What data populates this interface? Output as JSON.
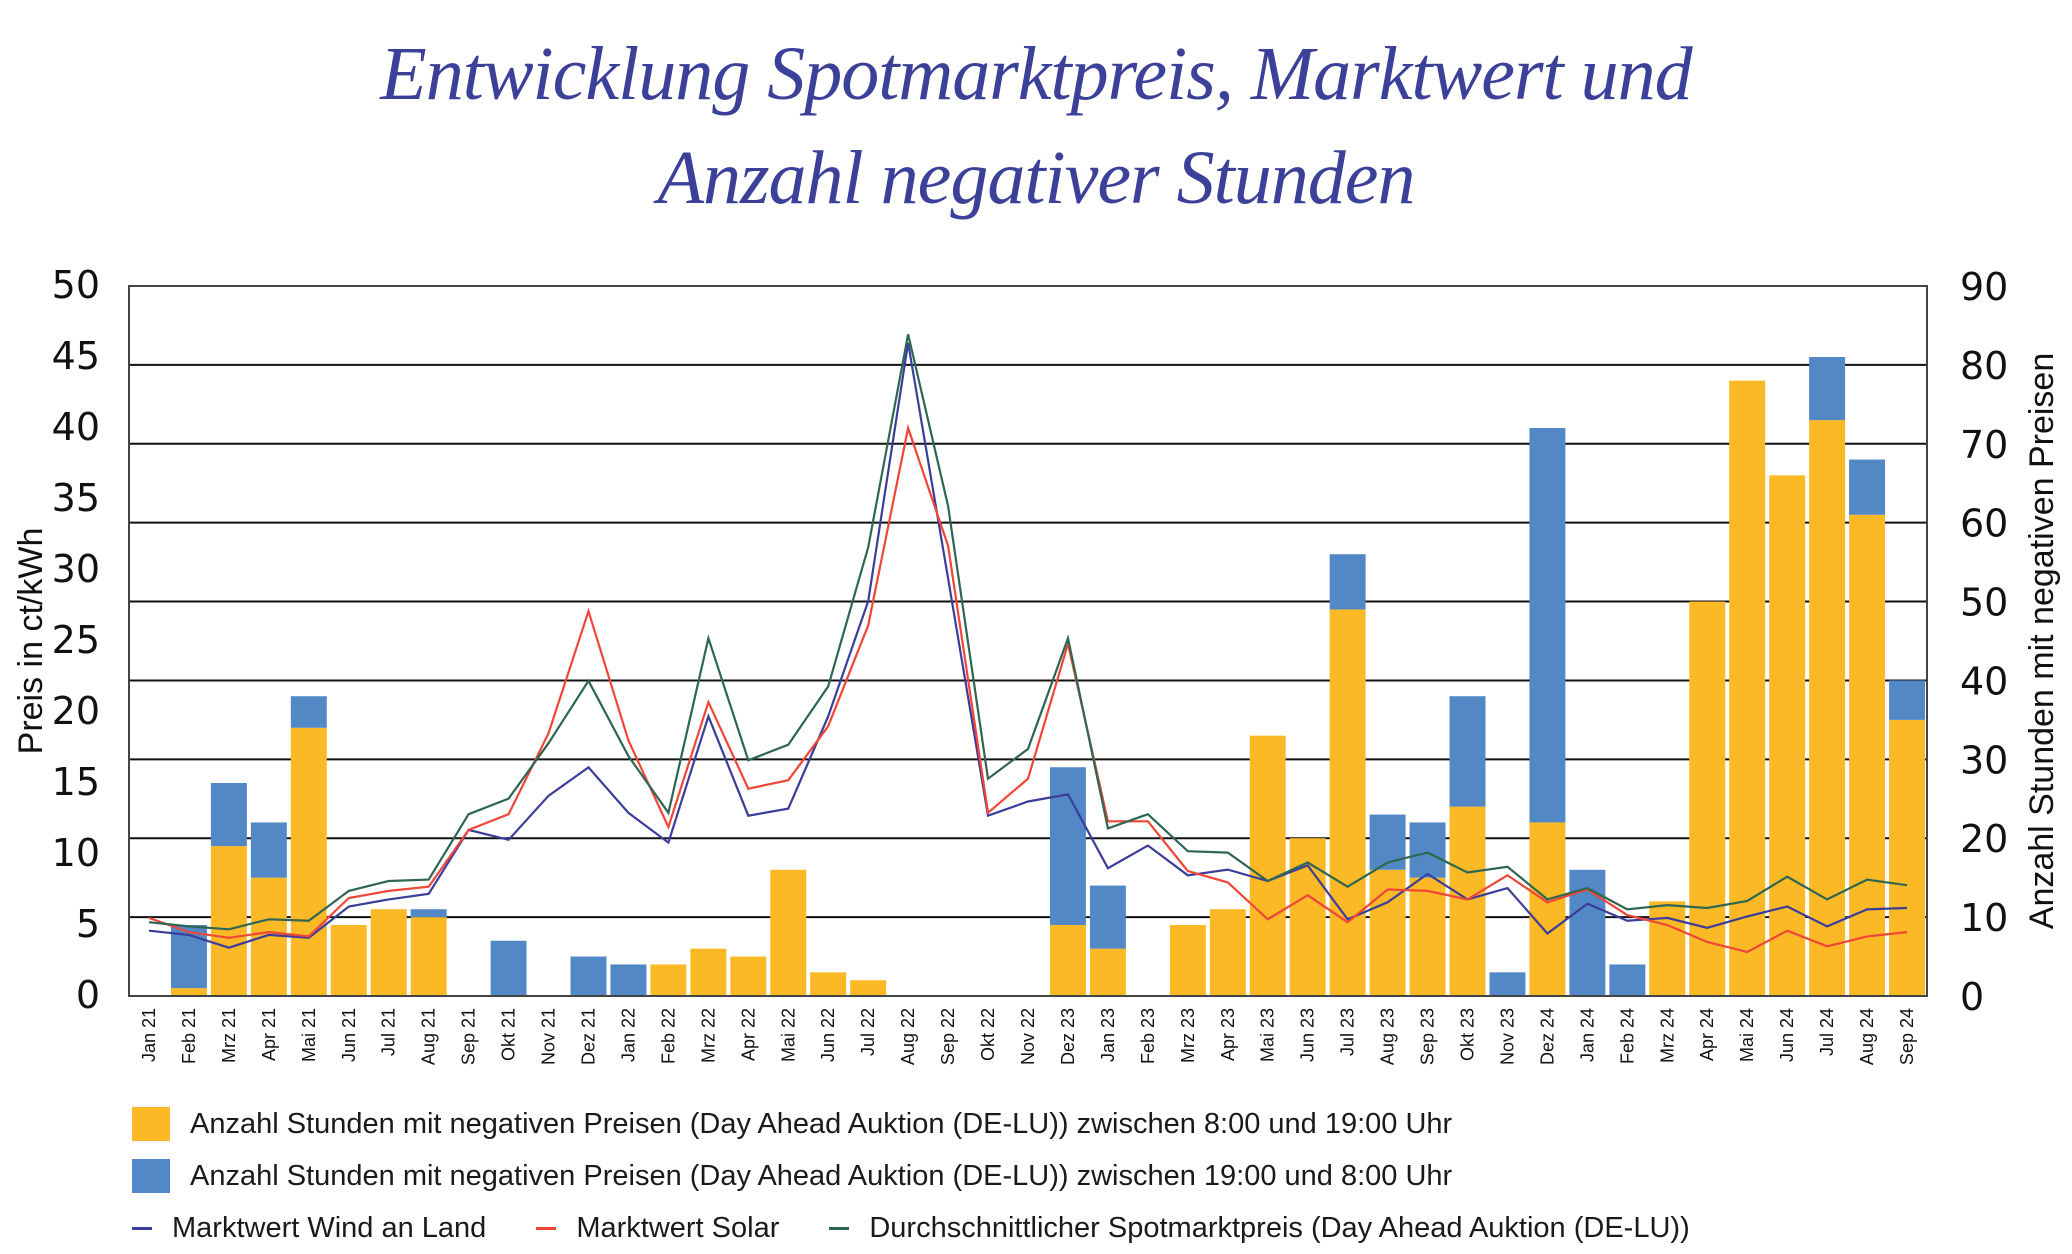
{
  "title_line1": "Entwicklung Spotmarktpreis, Marktwert und",
  "title_line2": "Anzahl negativer Stunden",
  "colors": {
    "title": "#3b4099",
    "day_hours": "#fbb925",
    "night_hours": "#5388c7",
    "wind": "#3b3d9b",
    "solar": "#ef4638",
    "spot": "#2e6652"
  },
  "legend": {
    "day_hours": "Anzahl Stunden mit negativen Preisen (Day Ahead Auktion (DE-LU)) zwischen 8:00 und 19:00 Uhr",
    "night_hours": "Anzahl Stunden mit negativen Preisen (Day Ahead Auktion (DE-LU)) zwischen 19:00 und 8:00 Uhr",
    "wind": "Marktwert Wind an Land",
    "solar": "Marktwert Solar",
    "spot": "Durchschnittlicher Spotmarktpreis (Day Ahead Auktion (DE-LU))"
  },
  "chart_data": {
    "type": "bar+line",
    "title": "Entwicklung Spotmarktpreis, Marktwert und Anzahl negativer Stunden",
    "ylabel_left": "Preis in ct/kWh",
    "ylabel_right": "Anzahl Stunden mit negativen Preisen",
    "ylim_left": [
      0,
      50
    ],
    "yticks_left": [
      0,
      5,
      10,
      15,
      20,
      25,
      30,
      35,
      40,
      45,
      50
    ],
    "ylim_right": [
      0,
      90
    ],
    "yticks_right": [
      0,
      10,
      20,
      30,
      40,
      50,
      60,
      70,
      80,
      90
    ],
    "grid": true,
    "legend_position": "bottom",
    "categories": [
      "Jan 21",
      "Feb 21",
      "Mrz 21",
      "Apr 21",
      "Mai 21",
      "Jun 21",
      "Jul 21",
      "Aug 21",
      "Sep 21",
      "Okt 21",
      "Nov 21",
      "Dez 21",
      "Jan 22",
      "Feb 22",
      "Mrz 22",
      "Apr 22",
      "Mai 22",
      "Jun 22",
      "Jul 22",
      "Aug 22",
      "Sep 22",
      "Okt 22",
      "Nov 22",
      "Dez 23",
      "Jan 23",
      "Feb 23",
      "Mrz 23",
      "Apr 23",
      "Mai 23",
      "Jun 23",
      "Jul 23",
      "Aug 23",
      "Sep 23",
      "Okt 23",
      "Nov 23",
      "Dez 24",
      "Jan 24",
      "Feb 24",
      "Mrz 24",
      "Apr 24",
      "Mai 24",
      "Jun 24",
      "Jul 24",
      "Aug 24",
      "Sep 24"
    ],
    "bar_series": [
      {
        "name": "Anzahl Stunden mit negativen Preisen (Day Ahead Auktion (DE-LU)) zwischen 8:00 und 19:00 Uhr",
        "axis": "right",
        "stack": "hours",
        "values": [
          0,
          1,
          19,
          15,
          34,
          9,
          11,
          10,
          0,
          0,
          0,
          0,
          0,
          4,
          6,
          5,
          16,
          3,
          2,
          0,
          0,
          0,
          0,
          9,
          6,
          0,
          9,
          11,
          33,
          20,
          49,
          16,
          15,
          24,
          0,
          22,
          0,
          0,
          12,
          50,
          78,
          66,
          73,
          61,
          35
        ]
      },
      {
        "name": "Anzahl Stunden mit negativen Preisen (Day Ahead Auktion (DE-LU)) zwischen 19:00 und 8:00 Uhr",
        "axis": "right",
        "stack": "hours",
        "values": [
          0,
          8,
          8,
          7,
          4,
          0,
          0,
          1,
          0,
          7,
          0,
          5,
          4,
          0,
          0,
          0,
          0,
          0,
          0,
          0,
          0,
          0,
          0,
          20,
          8,
          0,
          0,
          0,
          0,
          0,
          7,
          7,
          7,
          14,
          3,
          50,
          16,
          4,
          0,
          0,
          0,
          0,
          8,
          7,
          5
        ]
      }
    ],
    "line_series": [
      {
        "name": "Marktwert Wind an Land",
        "axis": "left",
        "values": [
          4.6,
          4.3,
          3.4,
          4.3,
          4.1,
          6.3,
          6.8,
          7.2,
          11.7,
          11.0,
          14.1,
          16.1,
          12.9,
          10.8,
          19.7,
          12.7,
          13.2,
          19.7,
          27.8,
          46.0,
          29.4,
          12.7,
          13.7,
          14.2,
          9.0,
          10.6,
          8.5,
          8.9,
          8.1,
          9.2,
          5.4,
          6.6,
          8.6,
          6.8,
          7.6,
          4.4,
          6.5,
          5.3,
          5.5,
          4.8,
          5.6,
          6.3,
          4.9,
          6.1,
          6.2
        ]
      },
      {
        "name": "Marktwert Solar",
        "axis": "left",
        "values": [
          5.5,
          4.5,
          4.1,
          4.5,
          4.2,
          6.9,
          7.4,
          7.7,
          11.7,
          12.8,
          18.5,
          27.1,
          18.0,
          11.9,
          20.7,
          14.6,
          15.2,
          19.0,
          26.1,
          40.0,
          31.7,
          12.9,
          15.3,
          24.8,
          12.3,
          12.3,
          8.8,
          8.0,
          5.4,
          7.1,
          5.2,
          7.5,
          7.4,
          6.8,
          8.5,
          6.6,
          7.5,
          5.7,
          5.0,
          3.8,
          3.1,
          4.6,
          3.5,
          4.2,
          4.5
        ]
      },
      {
        "name": "Durchschnittlicher Spotmarktpreis (Day Ahead Auktion (DE-LU))",
        "axis": "left",
        "values": [
          5.2,
          4.9,
          4.7,
          5.4,
          5.3,
          7.4,
          8.1,
          8.2,
          12.8,
          13.9,
          17.8,
          22.2,
          16.9,
          12.9,
          25.2,
          16.6,
          17.7,
          21.8,
          31.6,
          46.6,
          34.5,
          15.3,
          17.4,
          25.2,
          11.8,
          12.8,
          10.2,
          10.1,
          8.1,
          9.4,
          7.7,
          9.4,
          10.1,
          8.7,
          9.1,
          6.8,
          7.6,
          6.1,
          6.4,
          6.2,
          6.7,
          8.4,
          6.8,
          8.2,
          7.8
        ]
      }
    ]
  }
}
